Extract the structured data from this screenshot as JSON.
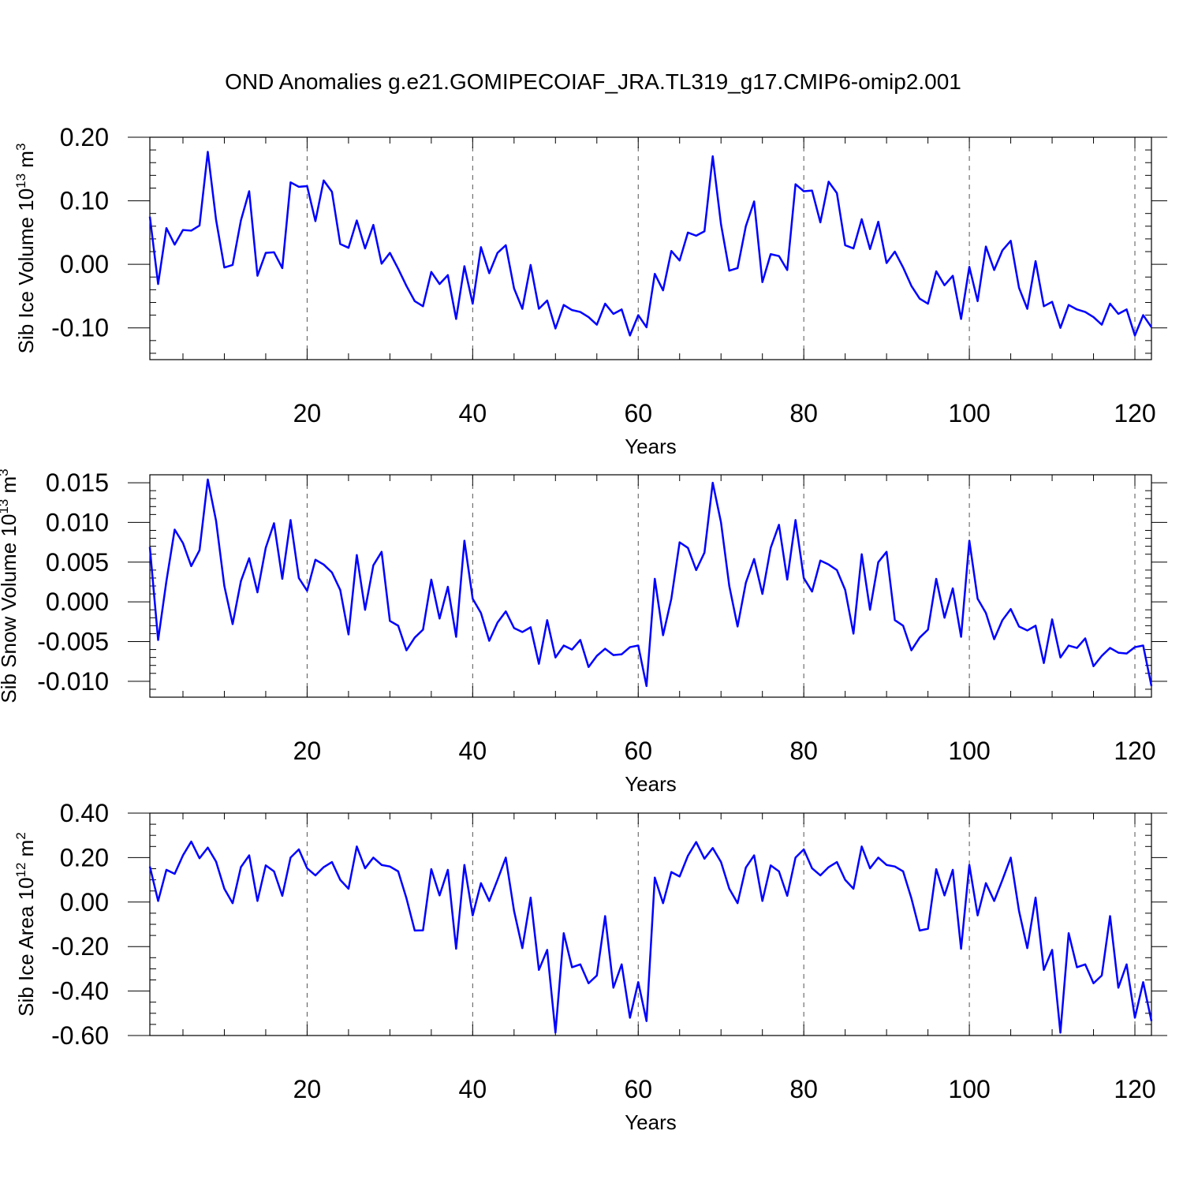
{
  "title": "OND Anomalies g.e21.GOMIPECOIAF_JRA.TL319_g17.CMIP6-omip2.001",
  "line_color": "#0000ff",
  "chart_data": [
    {
      "type": "line",
      "ylabel_text": "Sib Ice Volume 10",
      "ylabel_exp": "13",
      "ylabel_unit": " m",
      "ylabel_unit_exp": "3",
      "xlabel": "Years",
      "xlim": [
        1,
        122
      ],
      "ylim": [
        -0.15,
        0.2
      ],
      "xticks": [
        20,
        40,
        60,
        80,
        100,
        120
      ],
      "xtick_labels": [
        "20",
        "40",
        "60",
        "80",
        "100",
        "120"
      ],
      "yticks": [
        -0.1,
        0.0,
        0.1,
        0.2
      ],
      "ytick_labels": [
        "-0.10",
        "0.00",
        "0.10",
        "0.20"
      ],
      "y_minor": [
        -0.14,
        -0.12,
        -0.08,
        -0.06,
        -0.04,
        -0.02,
        0.02,
        0.04,
        0.06,
        0.08,
        0.12,
        0.14,
        0.16,
        0.18
      ],
      "grid_x": [
        20,
        40,
        60,
        80,
        100,
        120
      ],
      "series": [
        {
          "name": "Sib Ice Volume",
          "values": [
            0.075,
            -0.031,
            0.057,
            0.031,
            0.054,
            0.053,
            0.061,
            0.177,
            0.07,
            -0.005,
            -0.001,
            0.069,
            0.115,
            -0.018,
            0.018,
            0.019,
            -0.006,
            0.129,
            0.122,
            0.123,
            0.068,
            0.132,
            0.114,
            0.032,
            0.026,
            0.069,
            0.025,
            0.062,
            0.001,
            0.018,
            -0.007,
            -0.034,
            -0.058,
            -0.066,
            -0.012,
            -0.031,
            -0.017,
            -0.086,
            -0.003,
            -0.062,
            0.027,
            -0.014,
            0.018,
            0.03,
            -0.038,
            -0.07,
            -0.001,
            -0.07,
            -0.057,
            -0.101,
            -0.064,
            -0.072,
            -0.075,
            -0.083,
            -0.095,
            -0.062,
            -0.078,
            -0.071,
            -0.112,
            -0.08,
            -0.099,
            -0.015,
            -0.041,
            0.021,
            0.006,
            0.05,
            0.045,
            0.052,
            0.17,
            0.063,
            -0.01,
            -0.006,
            0.06,
            0.099,
            -0.028,
            0.016,
            0.013,
            -0.009,
            0.126,
            0.115,
            0.116,
            0.066,
            0.13,
            0.112,
            0.03,
            0.025,
            0.071,
            0.024,
            0.067,
            0.002,
            0.02,
            -0.005,
            -0.034,
            -0.054,
            -0.062,
            -0.011,
            -0.033,
            -0.018,
            -0.086,
            -0.004,
            -0.058,
            0.028,
            -0.009,
            0.022,
            0.037,
            -0.037,
            -0.07,
            0.005,
            -0.066,
            -0.059,
            -0.1,
            -0.064,
            -0.071,
            -0.075,
            -0.083,
            -0.095,
            -0.062,
            -0.078,
            -0.071,
            -0.112,
            -0.08,
            -0.099
          ]
        }
      ]
    },
    {
      "type": "line",
      "ylabel_text": "Sib Snow Volume 10",
      "ylabel_exp": "13",
      "ylabel_unit": " m",
      "ylabel_unit_exp": "3",
      "xlabel": "Years",
      "xlim": [
        1,
        122
      ],
      "ylim": [
        -0.012,
        0.016
      ],
      "xticks": [
        20,
        40,
        60,
        80,
        100,
        120
      ],
      "xtick_labels": [
        "20",
        "40",
        "60",
        "80",
        "100",
        "120"
      ],
      "yticks": [
        -0.01,
        -0.005,
        0.0,
        0.005,
        0.01,
        0.015
      ],
      "ytick_labels": [
        "-0.010",
        "-0.005",
        "0.000",
        "0.005",
        "0.010",
        "0.015"
      ],
      "y_minor": [
        -0.011,
        -0.009,
        -0.008,
        -0.007,
        -0.006,
        -0.004,
        -0.003,
        -0.002,
        -0.001,
        0.001,
        0.002,
        0.003,
        0.004,
        0.006,
        0.007,
        0.008,
        0.009,
        0.011,
        0.012,
        0.013,
        0.014,
        0.016
      ],
      "grid_x": [
        20,
        40,
        60,
        80,
        100,
        120
      ],
      "series": [
        {
          "name": "Sib Snow Volume",
          "values": [
            0.0069,
            -0.0048,
            0.0026,
            0.0091,
            0.0074,
            0.0045,
            0.0065,
            0.0154,
            0.0102,
            0.002,
            -0.0028,
            0.0026,
            0.0055,
            0.0012,
            0.0068,
            0.0099,
            0.0029,
            0.0103,
            0.003,
            0.0014,
            0.0053,
            0.0047,
            0.0037,
            0.0015,
            -0.0041,
            0.0059,
            -0.001,
            0.0046,
            0.0063,
            -0.0024,
            -0.003,
            -0.0061,
            -0.0045,
            -0.0035,
            0.0028,
            -0.0021,
            0.0019,
            -0.0044,
            0.0077,
            0.0004,
            -0.0014,
            -0.0049,
            -0.0026,
            -0.0012,
            -0.0033,
            -0.0038,
            -0.0032,
            -0.0078,
            -0.0023,
            -0.007,
            -0.0055,
            -0.006,
            -0.0048,
            -0.0082,
            -0.0068,
            -0.0059,
            -0.0067,
            -0.0066,
            -0.0057,
            -0.0055,
            -0.0106,
            0.0029,
            -0.0042,
            0.0004,
            0.0075,
            0.0068,
            0.004,
            0.0062,
            0.015,
            0.01,
            0.002,
            -0.0031,
            0.0024,
            0.0054,
            0.001,
            0.0068,
            0.0097,
            0.0028,
            0.0103,
            0.003,
            0.0013,
            0.0052,
            0.0047,
            0.004,
            0.0015,
            -0.004,
            0.006,
            -0.001,
            0.005,
            0.0063,
            -0.0023,
            -0.003,
            -0.0061,
            -0.0045,
            -0.0035,
            0.0029,
            -0.002,
            0.0017,
            -0.0044,
            0.0077,
            0.0004,
            -0.0014,
            -0.0047,
            -0.0023,
            -0.0009,
            -0.0031,
            -0.0036,
            -0.003,
            -0.0077,
            -0.0022,
            -0.007,
            -0.0055,
            -0.0058,
            -0.0046,
            -0.0081,
            -0.0068,
            -0.0058,
            -0.0064,
            -0.0065,
            -0.0057,
            -0.0055,
            -0.0106
          ]
        }
      ]
    },
    {
      "type": "line",
      "ylabel_text": "Sib Ice Area 10",
      "ylabel_exp": "12",
      "ylabel_unit": " m",
      "ylabel_unit_exp": "2",
      "xlabel": "Years",
      "xlim": [
        1,
        122
      ],
      "ylim": [
        -0.6,
        0.4
      ],
      "xticks": [
        20,
        40,
        60,
        80,
        100,
        120
      ],
      "xtick_labels": [
        "20",
        "40",
        "60",
        "80",
        "100",
        "120"
      ],
      "yticks": [
        -0.6,
        -0.4,
        -0.2,
        0.0,
        0.2,
        0.4
      ],
      "ytick_labels": [
        "-0.60",
        "-0.40",
        "-0.20",
        "0.00",
        "0.20",
        "0.40"
      ],
      "y_minor": [
        -0.55,
        -0.5,
        -0.45,
        -0.35,
        -0.3,
        -0.25,
        -0.15,
        -0.1,
        -0.05,
        0.05,
        0.1,
        0.15,
        0.25,
        0.3,
        0.35
      ],
      "grid_x": [
        20,
        40,
        60,
        80,
        100,
        120
      ],
      "series": [
        {
          "name": "Sib Ice Area",
          "values": [
            0.16,
            0.005,
            0.145,
            0.127,
            0.21,
            0.272,
            0.197,
            0.245,
            0.182,
            0.06,
            -0.005,
            0.157,
            0.21,
            0.005,
            0.165,
            0.138,
            0.028,
            0.2,
            0.237,
            0.152,
            0.12,
            0.157,
            0.18,
            0.1,
            0.06,
            0.25,
            0.152,
            0.2,
            0.167,
            0.16,
            0.138,
            0.017,
            -0.128,
            -0.127,
            0.148,
            0.03,
            0.145,
            -0.21,
            0.167,
            -0.06,
            0.085,
            0.005,
            0.1,
            0.2,
            -0.04,
            -0.207,
            0.02,
            -0.305,
            -0.215,
            -0.587,
            -0.14,
            -0.293,
            -0.28,
            -0.365,
            -0.33,
            -0.063,
            -0.385,
            -0.28,
            -0.52,
            -0.36,
            -0.535,
            0.11,
            -0.005,
            0.135,
            0.115,
            0.208,
            0.27,
            0.195,
            0.243,
            0.18,
            0.06,
            -0.005,
            0.155,
            0.21,
            0.005,
            0.165,
            0.138,
            0.028,
            0.2,
            0.237,
            0.152,
            0.12,
            0.157,
            0.18,
            0.1,
            0.06,
            0.25,
            0.152,
            0.2,
            0.167,
            0.16,
            0.138,
            0.017,
            -0.128,
            -0.12,
            0.148,
            0.03,
            0.145,
            -0.21,
            0.167,
            -0.06,
            0.085,
            0.005,
            0.1,
            0.2,
            -0.04,
            -0.207,
            0.02,
            -0.305,
            -0.215,
            -0.587,
            -0.14,
            -0.293,
            -0.28,
            -0.365,
            -0.33,
            -0.063,
            -0.385,
            -0.28,
            -0.52,
            -0.36,
            -0.535
          ]
        }
      ]
    }
  ]
}
